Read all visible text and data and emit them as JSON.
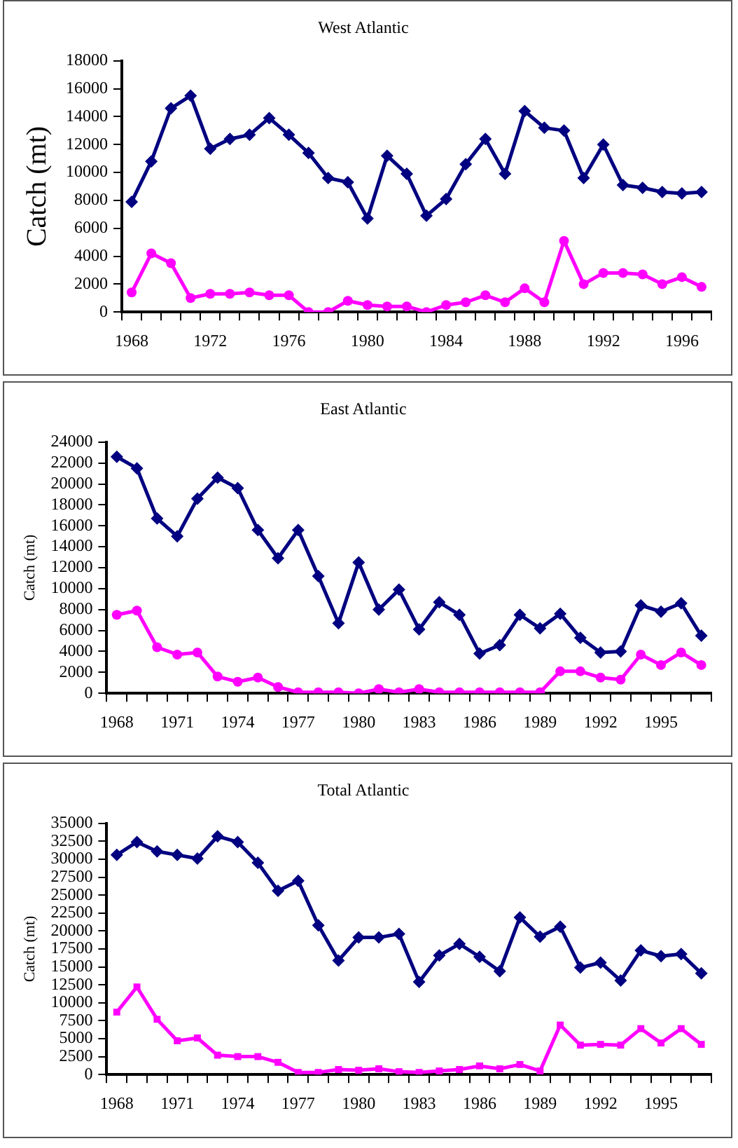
{
  "chart_data": [
    {
      "type": "line",
      "title": "West Atlantic",
      "ylabel": "Catch (mt)",
      "categories": [
        "1968",
        null,
        null,
        null,
        "1972",
        null,
        null,
        null,
        "1976",
        null,
        null,
        null,
        "1980",
        null,
        null,
        null,
        "1984",
        null,
        null,
        null,
        "1988",
        null,
        null,
        null,
        "1992",
        null,
        null,
        null,
        "1996",
        null
      ],
      "series": [
        {
          "color": "#000080",
          "marker": "diamond",
          "values": [
            7900,
            10800,
            14600,
            15500,
            11700,
            12400,
            12700,
            13900,
            12700,
            11400,
            9600,
            9300,
            6700,
            11200,
            9900,
            6900,
            8100,
            10600,
            12400,
            9900,
            14400,
            13200,
            13000,
            9600,
            12000,
            9100,
            8900,
            8600,
            8500,
            8600
          ]
        },
        {
          "color": "#ff00ff",
          "marker": "circle",
          "values": [
            1400,
            4200,
            3500,
            1000,
            1300,
            1300,
            1400,
            1200,
            1200,
            0,
            0,
            800,
            500,
            400,
            400,
            0,
            500,
            700,
            1200,
            700,
            1700,
            700,
            5100,
            2000,
            2800,
            2800,
            2700,
            2000,
            2500,
            1800
          ]
        }
      ],
      "ylim": [
        0,
        18000
      ],
      "yticks": [
        0,
        2000,
        4000,
        6000,
        8000,
        10000,
        12000,
        14000,
        16000,
        18000
      ],
      "grid": false,
      "legend": false,
      "line_style": "solid"
    },
    {
      "type": "line",
      "title": "East Atlantic",
      "ylabel": "Catch (mt)",
      "categories": [
        "1968",
        null,
        null,
        "1971",
        null,
        null,
        "1974",
        null,
        null,
        "1977",
        null,
        null,
        "1980",
        null,
        null,
        "1983",
        null,
        null,
        "1986",
        null,
        null,
        "1989",
        null,
        null,
        "1992",
        null,
        null,
        "1995",
        null,
        null
      ],
      "series": [
        {
          "color": "#000080",
          "marker": "diamond",
          "values": [
            22600,
            21500,
            16700,
            15000,
            18600,
            20600,
            19600,
            15600,
            12900,
            15600,
            11200,
            6700,
            12500,
            8000,
            9900,
            6100,
            8700,
            7500,
            3800,
            4600,
            7500,
            6200,
            7600,
            5300,
            3900,
            4000,
            8400,
            7800,
            8600,
            5500
          ]
        },
        {
          "color": "#ff00ff",
          "marker": "circle",
          "values": [
            7500,
            7900,
            4400,
            3700,
            3900,
            1600,
            1100,
            1500,
            600,
            100,
            100,
            100,
            0,
            400,
            100,
            400,
            100,
            100,
            100,
            100,
            100,
            100,
            2100,
            2100,
            1500,
            1300,
            3700,
            2700,
            3900,
            2700
          ]
        }
      ],
      "ylim": [
        0,
        24000
      ],
      "yticks": [
        0,
        2000,
        4000,
        6000,
        8000,
        10000,
        12000,
        14000,
        16000,
        18000,
        20000,
        22000,
        24000
      ],
      "grid": false,
      "legend": false,
      "line_style": "solid"
    },
    {
      "type": "line",
      "title": "Total Atlantic",
      "ylabel": "Catch (mt)",
      "categories": [
        "1968",
        null,
        null,
        "1971",
        null,
        null,
        "1974",
        null,
        null,
        "1977",
        null,
        null,
        "1980",
        null,
        null,
        "1983",
        null,
        null,
        "1986",
        null,
        null,
        "1989",
        null,
        null,
        "1992",
        null,
        null,
        "1995",
        null,
        null
      ],
      "series": [
        {
          "color": "#000080",
          "marker": "diamond",
          "values": [
            30600,
            32400,
            31100,
            30600,
            30100,
            33200,
            32400,
            29500,
            25600,
            27000,
            20800,
            15900,
            19100,
            19100,
            19600,
            12900,
            16600,
            18200,
            16400,
            14400,
            21900,
            19200,
            20600,
            14900,
            15600,
            13100,
            17300,
            16500,
            16800,
            14100
          ]
        },
        {
          "color": "#ff00ff",
          "marker": "square",
          "values": [
            8700,
            12200,
            7700,
            4700,
            5100,
            2700,
            2500,
            2500,
            1700,
            300,
            300,
            700,
            600,
            800,
            400,
            300,
            500,
            700,
            1200,
            800,
            1400,
            500,
            6900,
            4100,
            4200,
            4100,
            6400,
            4400,
            6400,
            4200
          ]
        }
      ],
      "ylim": [
        0,
        35000
      ],
      "yticks": [
        0,
        2500,
        5000,
        7500,
        10000,
        12500,
        15000,
        17500,
        20000,
        22500,
        25000,
        27500,
        30000,
        32500,
        35000
      ],
      "grid": false,
      "legend": false,
      "line_style": "solid"
    }
  ]
}
